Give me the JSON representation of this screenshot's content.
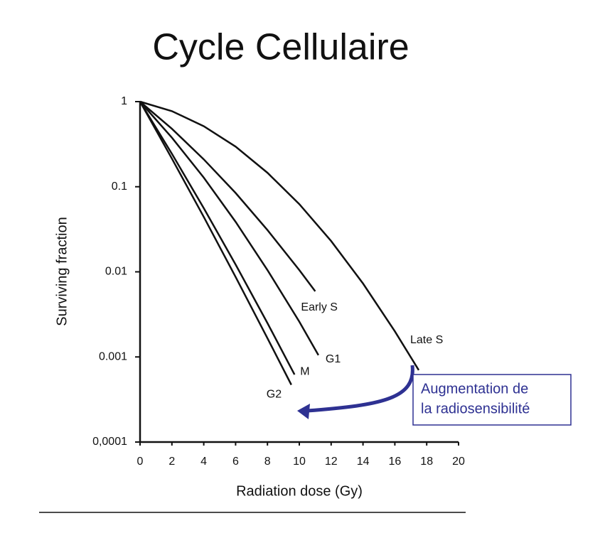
{
  "chart_data": {
    "type": "line",
    "title": "Cycle Cellulaire",
    "x_label": "Radiation dose (Gy)",
    "y_label": "Surviving fraction",
    "yscale": "log",
    "xlim": [
      0,
      20
    ],
    "xticks": [
      0,
      2,
      4,
      6,
      8,
      10,
      12,
      14,
      16,
      18,
      20
    ],
    "ylim": [
      0.0001,
      1
    ],
    "yticks": [
      {
        "value": 0.0001,
        "label": "0,0001"
      },
      0.001,
      0.01,
      0.1,
      1
    ],
    "series": [
      {
        "name": "Late S",
        "color": "#111111",
        "x": [
          0,
          2,
          4,
          6,
          8,
          10,
          12,
          14,
          16,
          17.5
        ],
        "values": [
          1,
          0.773,
          0.514,
          0.296,
          0.146,
          0.0625,
          0.023,
          0.0073,
          0.002,
          0.0007
        ]
      },
      {
        "name": "Early S",
        "color": "#111111",
        "x": [
          0,
          2,
          4,
          6,
          8,
          10,
          11
        ],
        "values": [
          1,
          0.48,
          0.21,
          0.0845,
          0.031,
          0.0105,
          0.0059
        ]
      },
      {
        "name": "G1",
        "color": "#111111",
        "x": [
          0,
          2,
          4,
          6,
          8,
          10,
          11.2
        ],
        "values": [
          1,
          0.377,
          0.128,
          0.0387,
          0.0105,
          0.0026,
          0.00105
        ]
      },
      {
        "name": "M",
        "color": "#111111",
        "x": [
          0,
          2,
          4,
          6,
          8,
          9.7
        ],
        "values": [
          1,
          0.244,
          0.056,
          0.0122,
          0.0025,
          0.00062
        ]
      },
      {
        "name": "G2",
        "color": "#111111",
        "x": [
          0,
          2,
          4,
          6,
          8,
          9.5
        ],
        "values": [
          1,
          0.214,
          0.0442,
          0.0087,
          0.00166,
          0.00047
        ]
      }
    ],
    "annotation": [
      "Augmentation de",
      "la radiosensibilité"
    ],
    "annotation_color": "#2e3192"
  }
}
